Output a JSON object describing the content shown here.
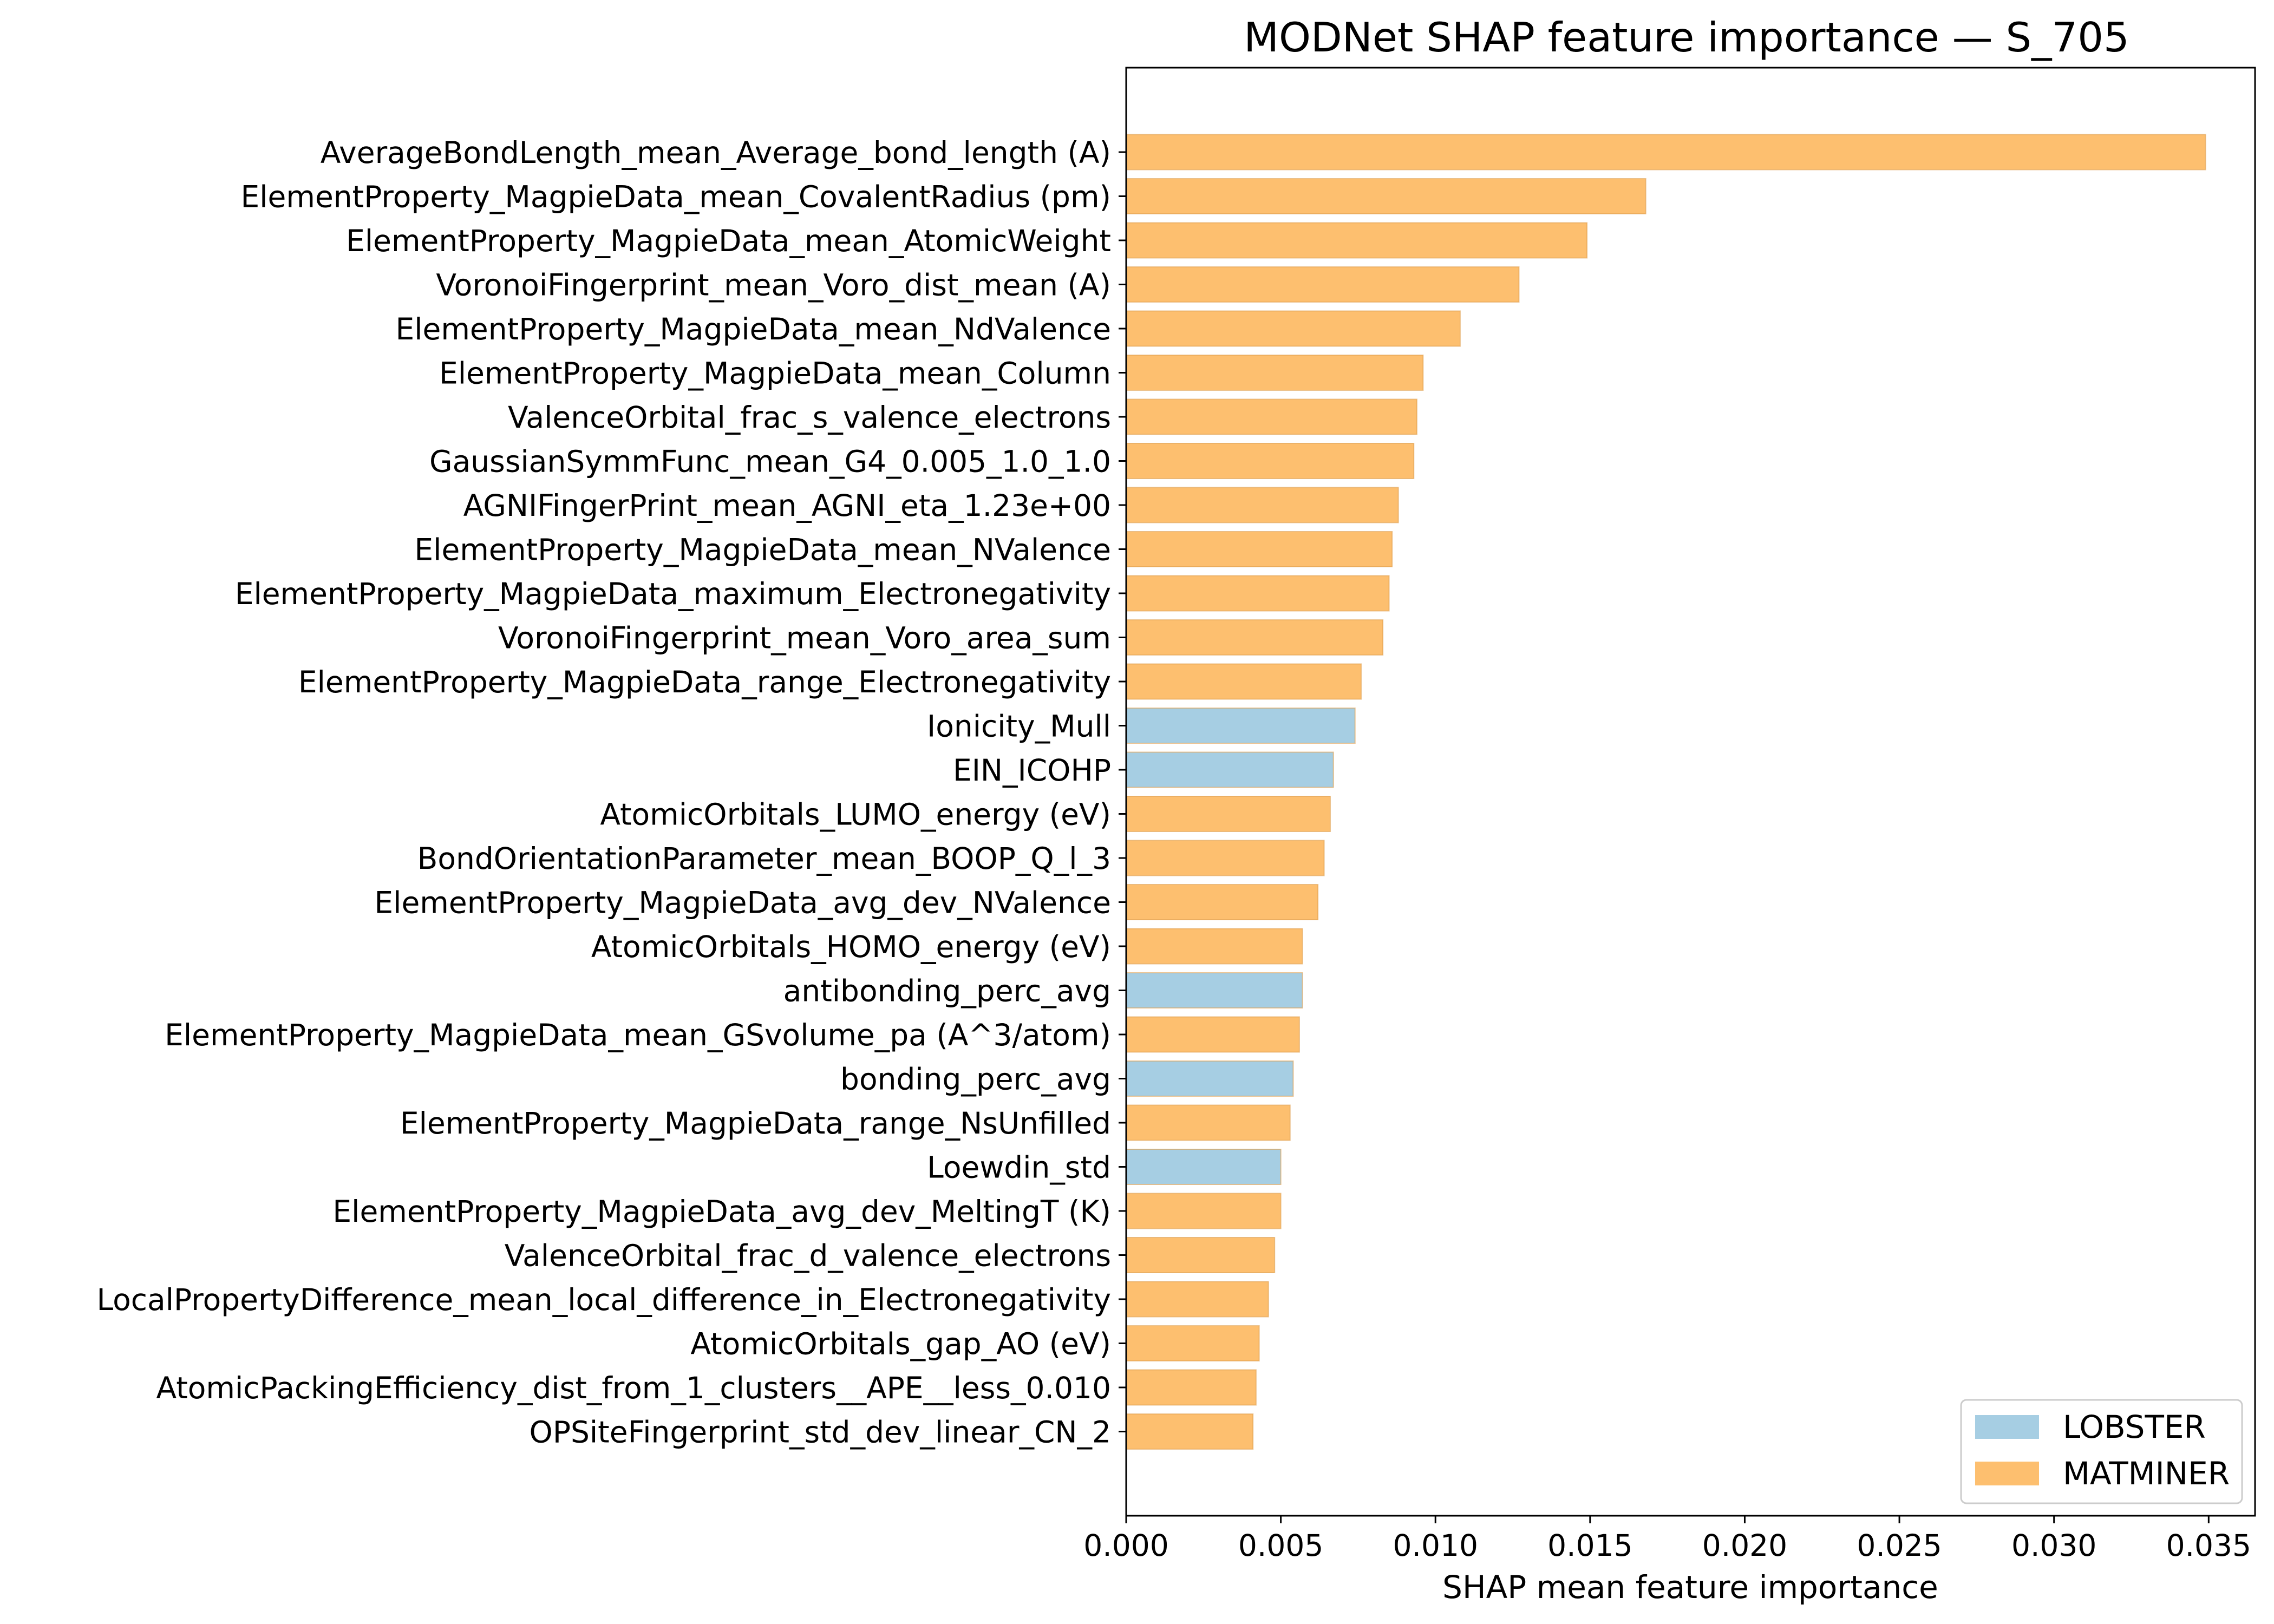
{
  "chart_data": {
    "type": "bar",
    "orientation": "horizontal",
    "title": "MODNet SHAP feature importance — S_705",
    "xlabel": "SHAP mean feature importance",
    "ylabel": "",
    "xlim": [
      0,
      0.0365
    ],
    "xticks": [
      0.0,
      0.005,
      0.01,
      0.015,
      0.02,
      0.025,
      0.03,
      0.035
    ],
    "xtick_labels": [
      "0.000",
      "0.005",
      "0.010",
      "0.015",
      "0.020",
      "0.025",
      "0.030",
      "0.035"
    ],
    "grid": false,
    "legend_position": "lower-right",
    "legend": [
      {
        "label": "LOBSTER",
        "color": "#a6cee3"
      },
      {
        "label": "MATMINER",
        "color": "#fdbf6f"
      }
    ],
    "colors": {
      "LOBSTER": "#a6cee3",
      "MATMINER": "#fdbf6f",
      "edge": "#e0a050"
    },
    "bars": [
      {
        "label": "AverageBondLength_mean_Average_bond_length (A)",
        "value": 0.0349,
        "group": "MATMINER"
      },
      {
        "label": "ElementProperty_MagpieData_mean_CovalentRadius (pm)",
        "value": 0.0168,
        "group": "MATMINER"
      },
      {
        "label": "ElementProperty_MagpieData_mean_AtomicWeight",
        "value": 0.0149,
        "group": "MATMINER"
      },
      {
        "label": "VoronoiFingerprint_mean_Voro_dist_mean (A)",
        "value": 0.0127,
        "group": "MATMINER"
      },
      {
        "label": "ElementProperty_MagpieData_mean_NdValence",
        "value": 0.0108,
        "group": "MATMINER"
      },
      {
        "label": "ElementProperty_MagpieData_mean_Column",
        "value": 0.0096,
        "group": "MATMINER"
      },
      {
        "label": "ValenceOrbital_frac_s_valence_electrons",
        "value": 0.0094,
        "group": "MATMINER"
      },
      {
        "label": "GaussianSymmFunc_mean_G4_0.005_1.0_1.0",
        "value": 0.0093,
        "group": "MATMINER"
      },
      {
        "label": "AGNIFingerPrint_mean_AGNI_eta_1.23e+00",
        "value": 0.0088,
        "group": "MATMINER"
      },
      {
        "label": "ElementProperty_MagpieData_mean_NValence",
        "value": 0.0086,
        "group": "MATMINER"
      },
      {
        "label": "ElementProperty_MagpieData_maximum_Electronegativity",
        "value": 0.0085,
        "group": "MATMINER"
      },
      {
        "label": "VoronoiFingerprint_mean_Voro_area_sum",
        "value": 0.0083,
        "group": "MATMINER"
      },
      {
        "label": "ElementProperty_MagpieData_range_Electronegativity",
        "value": 0.0076,
        "group": "MATMINER"
      },
      {
        "label": "Ionicity_Mull",
        "value": 0.0074,
        "group": "LOBSTER"
      },
      {
        "label": "EIN_ICOHP",
        "value": 0.0067,
        "group": "LOBSTER"
      },
      {
        "label": "AtomicOrbitals_LUMO_energy (eV)",
        "value": 0.0066,
        "group": "MATMINER"
      },
      {
        "label": "BondOrientationParameter_mean_BOOP_Q_l_3",
        "value": 0.0064,
        "group": "MATMINER"
      },
      {
        "label": "ElementProperty_MagpieData_avg_dev_NValence",
        "value": 0.0062,
        "group": "MATMINER"
      },
      {
        "label": "AtomicOrbitals_HOMO_energy (eV)",
        "value": 0.0057,
        "group": "MATMINER"
      },
      {
        "label": "antibonding_perc_avg",
        "value": 0.0057,
        "group": "LOBSTER"
      },
      {
        "label": "ElementProperty_MagpieData_mean_GSvolume_pa (A^3/atom)",
        "value": 0.0056,
        "group": "MATMINER"
      },
      {
        "label": "bonding_perc_avg",
        "value": 0.0054,
        "group": "LOBSTER"
      },
      {
        "label": "ElementProperty_MagpieData_range_NsUnfilled",
        "value": 0.0053,
        "group": "MATMINER"
      },
      {
        "label": "Loewdin_std",
        "value": 0.005,
        "group": "LOBSTER"
      },
      {
        "label": "ElementProperty_MagpieData_avg_dev_MeltingT (K)",
        "value": 0.005,
        "group": "MATMINER"
      },
      {
        "label": "ValenceOrbital_frac_d_valence_electrons",
        "value": 0.0048,
        "group": "MATMINER"
      },
      {
        "label": "LocalPropertyDifference_mean_local_difference_in_Electronegativity",
        "value": 0.0046,
        "group": "MATMINER"
      },
      {
        "label": "AtomicOrbitals_gap_AO (eV)",
        "value": 0.0043,
        "group": "MATMINER"
      },
      {
        "label": "AtomicPackingEfficiency_dist_from_1_clusters__APE__less_0.010",
        "value": 0.0042,
        "group": "MATMINER"
      },
      {
        "label": "OPSiteFingerprint_std_dev_linear_CN_2",
        "value": 0.0041,
        "group": "MATMINER"
      }
    ]
  }
}
